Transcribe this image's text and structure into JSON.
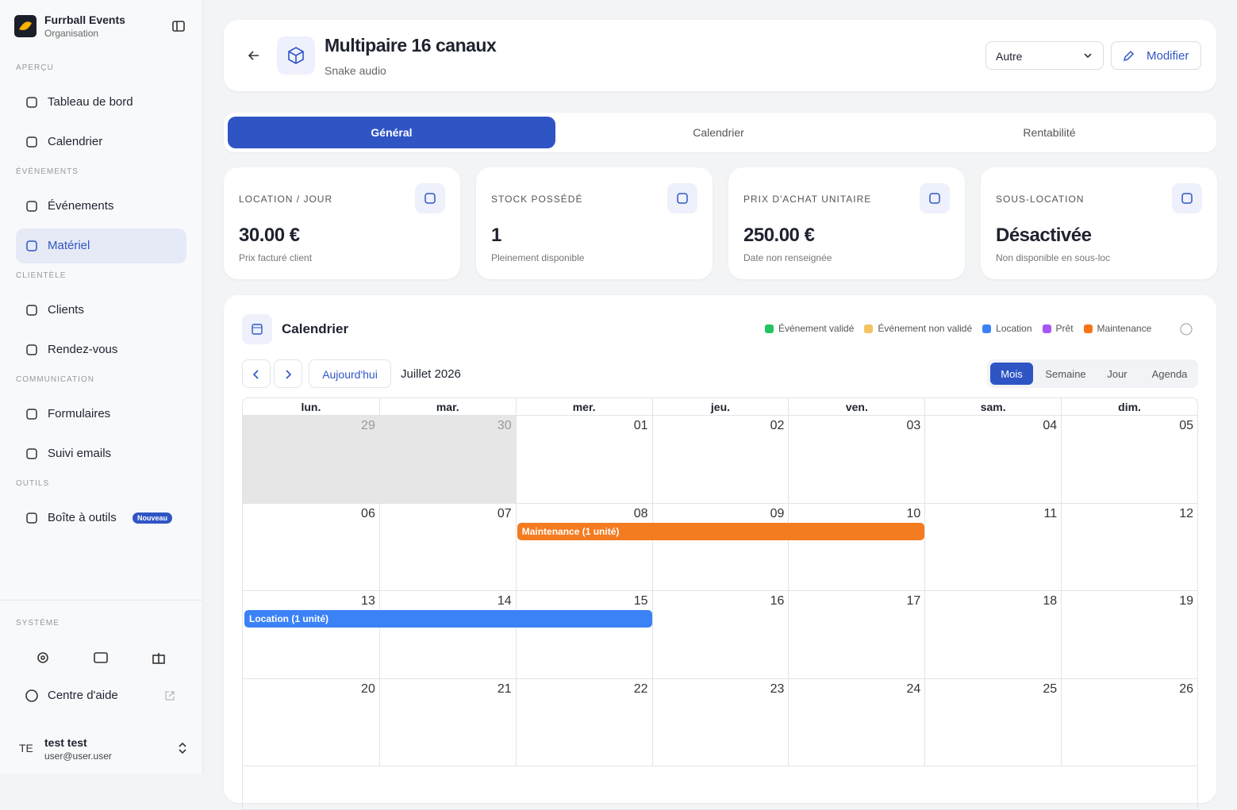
{
  "sidebar": {
    "org_name": "Furrball Events",
    "org_subtitle": "Organisation",
    "sections": [
      {
        "title": "APERÇU",
        "items": [
          {
            "label": "Tableau de bord"
          },
          {
            "label": "Calendrier"
          }
        ]
      },
      {
        "title": "ÉVÉNEMENTS",
        "items": [
          {
            "label": "Événements"
          },
          {
            "label": "Matériel",
            "active": true
          }
        ]
      },
      {
        "title": "CLIENTÈLE",
        "items": [
          {
            "label": "Clients"
          },
          {
            "label": "Rendez-vous"
          }
        ]
      },
      {
        "title": "COMMUNICATION",
        "items": [
          {
            "label": "Formulaires"
          },
          {
            "label": "Suivi emails"
          }
        ]
      },
      {
        "title": "OUTILS",
        "items": [
          {
            "label": "Boîte à outils",
            "badge": "Nouveau"
          }
        ]
      }
    ],
    "system_title": "SYSTÈME",
    "help": "Centre d'aide",
    "user": {
      "initials": "TE",
      "name": "test test",
      "email": "user@user.user"
    }
  },
  "header": {
    "title": "Multipaire 16 canaux",
    "subtitle": "Snake audio",
    "select": "Autre",
    "button": "Modifier"
  },
  "tabs": {
    "items": [
      "Général",
      "Calendrier",
      "Rentabilité"
    ],
    "active": 0
  },
  "stats": [
    {
      "label": "LOCATION / JOUR",
      "value": "30.00 €",
      "note": "Prix facturé client"
    },
    {
      "label": "STOCK POSSÉDÉ",
      "value": "1",
      "note": "Pleinement disponible"
    },
    {
      "label": "PRIX D'ACHAT UNITAIRE",
      "value": "250.00 €",
      "note": "Date non renseignée"
    },
    {
      "label": "SOUS-LOCATION",
      "value": "Désactivée",
      "note": "Non disponible en sous-loc"
    }
  ],
  "calendar": {
    "title": "Calendrier",
    "legend": [
      {
        "label": "Événement validé",
        "color": "#22c55e"
      },
      {
        "label": "Événement non validé",
        "color": "#f2c462"
      },
      {
        "label": "Location",
        "color": "#3b82f6"
      },
      {
        "label": "Prêt",
        "color": "#a855f7"
      },
      {
        "label": "Maintenance",
        "color": "#f97316"
      }
    ],
    "today": "Aujourd'hui",
    "month": "Juillet 2026",
    "views": [
      "Mois",
      "Semaine",
      "Jour",
      "Agenda"
    ],
    "active_view": 0,
    "weekdays": [
      "lun.",
      "mar.",
      "mer.",
      "jeu.",
      "ven.",
      "sam.",
      "dim."
    ],
    "weeks": [
      [
        "29",
        "30",
        "01",
        "02",
        "03",
        "04",
        "05"
      ],
      [
        "06",
        "07",
        "08",
        "09",
        "10",
        "11",
        "12"
      ],
      [
        "13",
        "14",
        "15",
        "16",
        "17",
        "18",
        "19"
      ],
      [
        "20",
        "21",
        "22",
        "23",
        "24",
        "25",
        "26"
      ]
    ],
    "previous_month_days": [
      "29",
      "30"
    ],
    "events": [
      {
        "label": "Maintenance (1 unité)",
        "color": "#f47b20",
        "start": "08",
        "end": "10"
      },
      {
        "label": "Location (1 unité)",
        "color": "#3b82f6",
        "start": "13",
        "end": "15"
      }
    ]
  }
}
